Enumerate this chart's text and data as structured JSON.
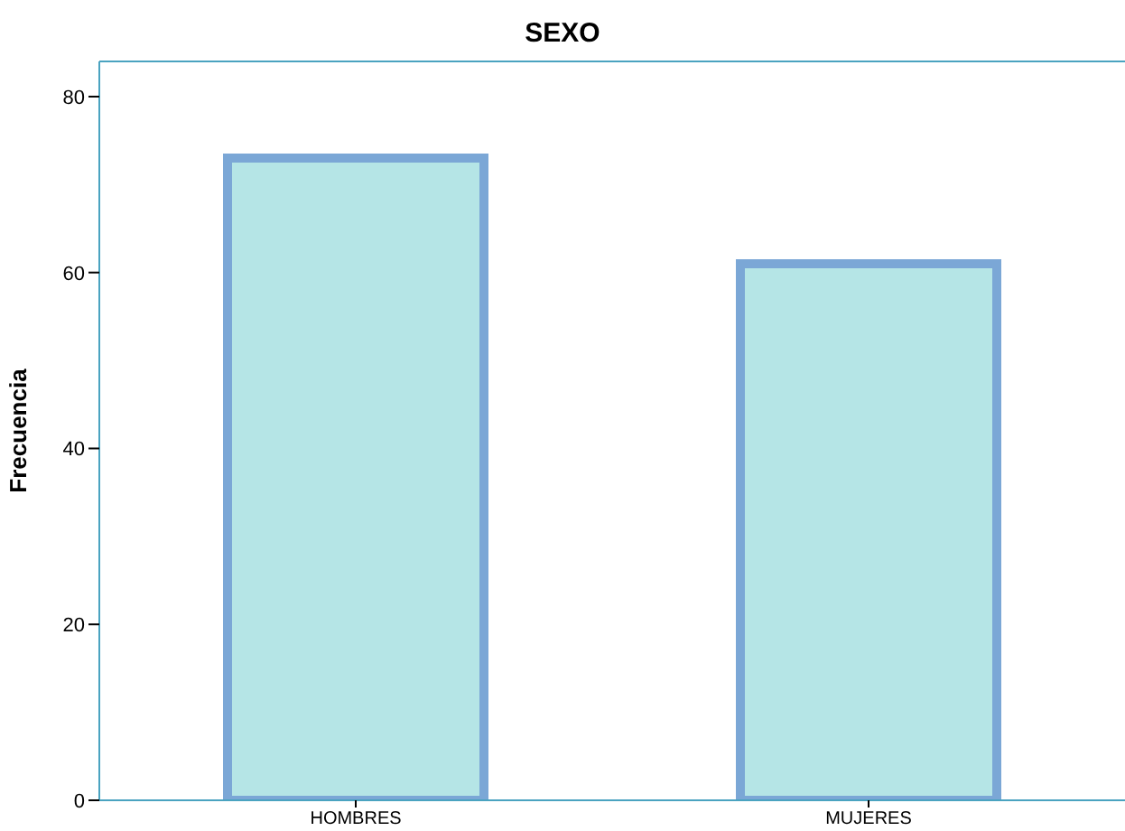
{
  "chart_data": {
    "type": "bar",
    "title": "SEXO",
    "ylabel": "Frecuencia",
    "categories": [
      "HOMBRES",
      "MUJERES"
    ],
    "values": [
      73,
      61
    ],
    "color": "#b5e5e6",
    "ylim": [
      0,
      84
    ],
    "yticks": [
      0,
      20,
      40,
      60,
      80
    ]
  }
}
